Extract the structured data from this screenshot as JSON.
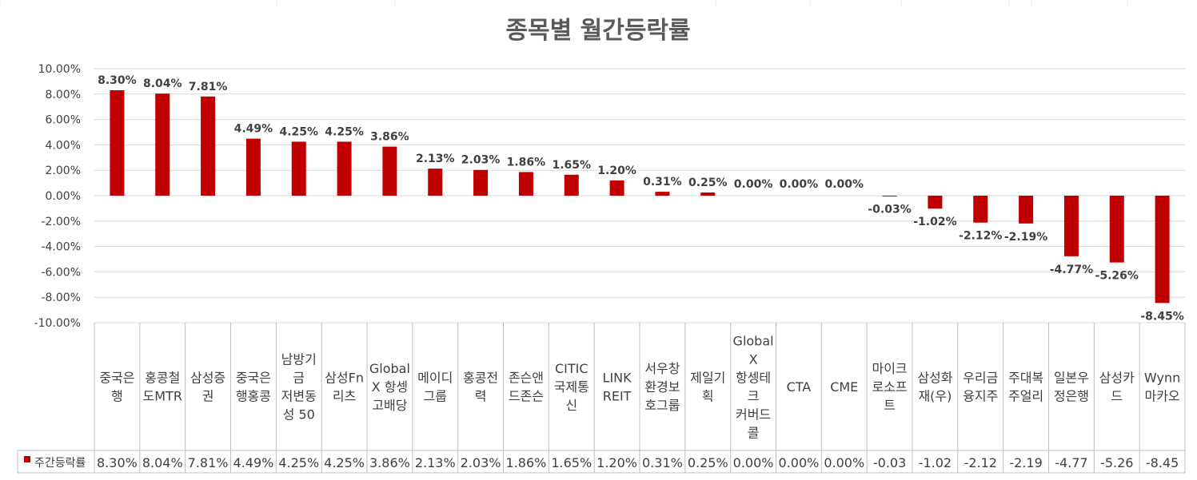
{
  "chart_data": {
    "type": "bar",
    "title": "종목별 월간등락률",
    "ylim": [
      -10,
      10
    ],
    "yticks": [
      "10.00%",
      "8.00%",
      "6.00%",
      "4.00%",
      "2.00%",
      "0.00%",
      "-2.00%",
      "-4.00%",
      "-6.00%",
      "-8.00%",
      "-10.00%"
    ],
    "grid": true,
    "bar_color": "#C00000",
    "categories": [
      [
        "중국은",
        "행"
      ],
      [
        "홍콩철",
        "도MTR"
      ],
      [
        "삼성증",
        "권"
      ],
      [
        "중국은",
        "행홍콩"
      ],
      [
        "남방기",
        "금",
        "저변동",
        "성 50"
      ],
      [
        "삼성Fn",
        "리츠"
      ],
      [
        "Global",
        "X 항셍",
        "고배당"
      ],
      [
        "메이디",
        "그룹"
      ],
      [
        "홍콩전",
        "력"
      ],
      [
        "존슨앤",
        "드존슨"
      ],
      [
        "CITIC",
        "국제통",
        "신"
      ],
      [
        "LINK",
        "REIT"
      ],
      [
        "서우창",
        "환경보",
        "호그룹"
      ],
      [
        "제일기",
        "획"
      ],
      [
        "Global",
        "X",
        "항셍테",
        "크",
        "커버드",
        "콜"
      ],
      [
        "CTA"
      ],
      [
        "CME"
      ],
      [
        "마이크",
        "로소프",
        "트"
      ],
      [
        "삼성화",
        "재(우)"
      ],
      [
        "우리금",
        "융지주"
      ],
      [
        "주대복",
        "주얼리"
      ],
      [
        "일본우",
        "정은행"
      ],
      [
        "삼성카",
        "드"
      ],
      [
        "Wynn",
        "마카오"
      ]
    ],
    "series": [
      {
        "name": "주간등락률",
        "values": [
          8.3,
          8.04,
          7.81,
          4.49,
          4.25,
          4.25,
          3.86,
          2.13,
          2.03,
          1.86,
          1.65,
          1.2,
          0.31,
          0.25,
          0.0,
          0.0,
          0.0,
          -0.03,
          -1.02,
          -2.12,
          -2.19,
          -4.77,
          -5.26,
          -8.45
        ],
        "data_labels": [
          "8.30%",
          "8.04%",
          "7.81%",
          "4.49%",
          "4.25%",
          "4.25%",
          "3.86%",
          "2.13%",
          "2.03%",
          "1.86%",
          "1.65%",
          "1.20%",
          "0.31%",
          "0.25%",
          "0.00%",
          "0.00%",
          "0.00%",
          "-0.03%",
          "-1.02%",
          "-2.12%",
          "-2.19%",
          "-4.77%",
          "-5.26%",
          "-8.45%"
        ],
        "table_values": [
          "8.30%",
          "8.04%",
          "7.81%",
          "4.49%",
          "4.25%",
          "4.25%",
          "3.86%",
          "2.13%",
          "2.03%",
          "1.86%",
          "1.65%",
          "1.20%",
          "0.31%",
          "0.25%",
          "0.00%",
          "0.00%",
          "0.00%",
          "-0.03",
          "-1.02",
          "-2.12",
          "-2.19",
          "-4.77",
          "-5.26",
          "-8.45"
        ]
      }
    ]
  }
}
